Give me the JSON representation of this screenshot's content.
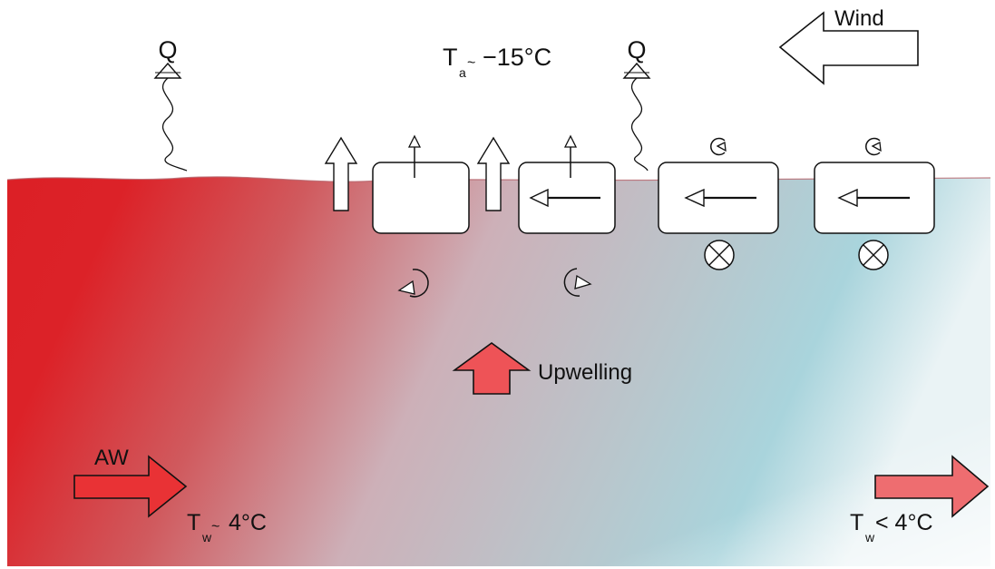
{
  "labels": {
    "q_left": "Q",
    "q_right": "Q",
    "air_temp_main": "T",
    "air_temp_sub": "a",
    "air_temp_approx": "~",
    "air_temp_value": "−15°C",
    "wind": "Wind",
    "upwelling": "Upwelling",
    "aw": "AW",
    "water_temp_left_main": "T",
    "water_temp_left_sub": "w",
    "water_temp_left_approx": "~",
    "water_temp_left_value": "4°C",
    "water_temp_right_main": "T",
    "water_temp_right_sub": "w",
    "water_temp_right_value": "< 4°C"
  },
  "colors": {
    "warm_water": "#dc2026",
    "mid_water": "#cdb0b8",
    "cold_water": "#a9d4dc",
    "arrow_fill_red": "#e93235",
    "upwelling_fill": "#ee5357",
    "outflow_fill": "#ee6d70",
    "outline": "#111111"
  },
  "icons": {
    "heat_flux": "wavy-arrow-up-icon",
    "vertical_flow": "hollow-arrow-up-icon",
    "cell_box": "rounded-box-icon",
    "rotation": "curl-arrow-icon",
    "into_page": "circled-x-icon"
  }
}
